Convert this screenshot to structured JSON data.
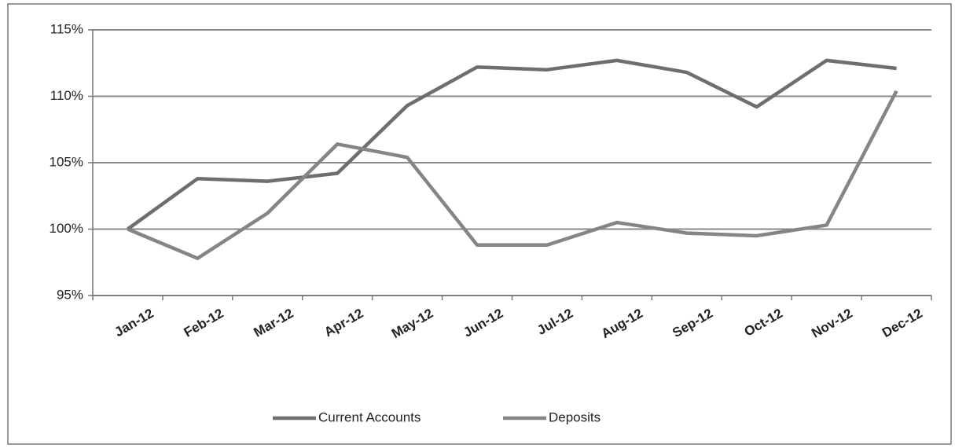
{
  "chart_data": {
    "type": "line",
    "categories": [
      "Jan-12",
      "Feb-12",
      "Mar-12",
      "Apr-12",
      "May-12",
      "Jun-12",
      "Jul-12",
      "Aug-12",
      "Sep-12",
      "Oct-12",
      "Nov-12",
      "Dec-12"
    ],
    "series": [
      {
        "name": "Current Accounts",
        "color": "#6e6e6e",
        "values": [
          100,
          103.8,
          103.6,
          104.2,
          109.3,
          112.2,
          112,
          112.7,
          111.8,
          109.2,
          112.7,
          112.1
        ]
      },
      {
        "name": "Deposits",
        "color": "#858585",
        "values": [
          100,
          97.8,
          101.2,
          106.4,
          105.4,
          98.8,
          98.8,
          100.5,
          99.7,
          99.5,
          100.3,
          110.4
        ]
      }
    ],
    "ylim": [
      95,
      115
    ],
    "yticks": [
      {
        "value": 95,
        "label": "95%"
      },
      {
        "value": 100,
        "label": "100%"
      },
      {
        "value": 105,
        "label": "105%"
      },
      {
        "value": 110,
        "label": "110%"
      },
      {
        "value": 115,
        "label": "115%"
      }
    ],
    "grid": true,
    "legend": "bottom"
  }
}
